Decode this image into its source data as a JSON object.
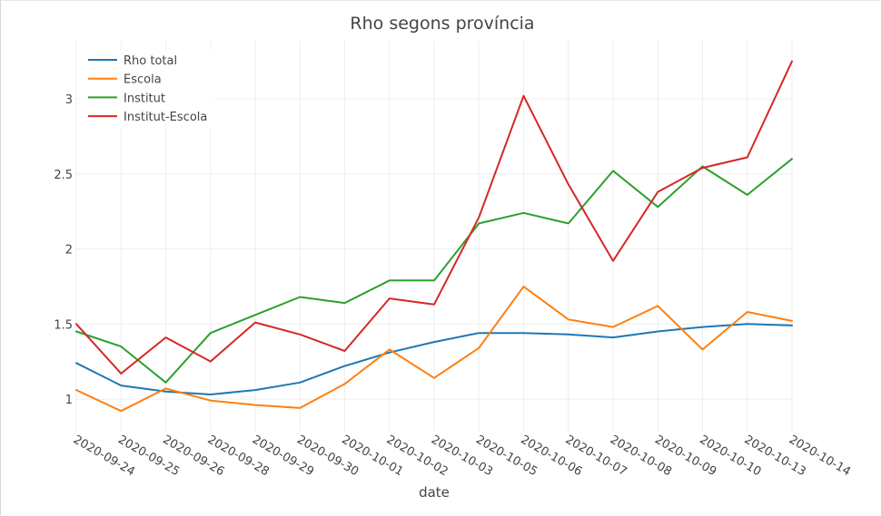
{
  "chart_data": {
    "type": "line",
    "title": "Rho segons província",
    "xlabel": "date",
    "ylabel": "",
    "ylim": [
      0.8,
      3.3
    ],
    "yticks": [
      1,
      1.5,
      2,
      2.5,
      3
    ],
    "ytick_labels": [
      "1",
      "1.5",
      "2",
      "2.5",
      "3"
    ],
    "grid": true,
    "legend_position": "top-left",
    "categories": [
      "2020-09-24",
      "2020-09-25",
      "2020-09-26",
      "2020-09-28",
      "2020-09-29",
      "2020-09-30",
      "2020-10-01",
      "2020-10-02",
      "2020-10-03",
      "2020-10-05",
      "2020-10-06",
      "2020-10-07",
      "2020-10-08",
      "2020-10-09",
      "2020-10-10",
      "2020-10-13",
      "2020-10-14"
    ],
    "series": [
      {
        "name": "Rho total",
        "color": "#1f77b4",
        "values": [
          1.24,
          1.09,
          1.05,
          1.03,
          1.06,
          1.11,
          1.22,
          1.31,
          1.38,
          1.44,
          1.44,
          1.43,
          1.41,
          1.45,
          1.48,
          1.5,
          1.49
        ]
      },
      {
        "name": "Escola",
        "color": "#ff7f0e",
        "values": [
          1.06,
          0.92,
          1.07,
          0.99,
          0.96,
          0.94,
          1.1,
          1.33,
          1.14,
          1.34,
          1.75,
          1.53,
          1.48,
          1.62,
          1.33,
          1.58,
          1.52
        ]
      },
      {
        "name": "Institut",
        "color": "#2ca02c",
        "values": [
          1.45,
          1.35,
          1.11,
          1.44,
          1.56,
          1.68,
          1.64,
          1.79,
          1.79,
          2.17,
          2.24,
          2.17,
          2.52,
          2.28,
          2.55,
          2.36,
          2.6
        ]
      },
      {
        "name": "Institut-Escola",
        "color": "#d62728",
        "values": [
          1.5,
          1.17,
          1.41,
          1.25,
          1.51,
          1.43,
          1.32,
          1.67,
          1.63,
          2.21,
          3.02,
          2.43,
          1.92,
          2.38,
          2.54,
          2.61,
          3.25
        ]
      }
    ]
  }
}
